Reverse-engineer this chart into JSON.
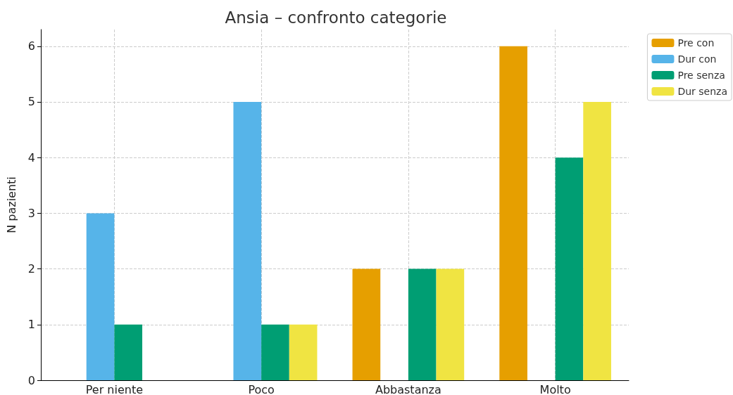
{
  "chart_data": {
    "type": "bar",
    "title": "Ansia – confronto categorie",
    "ylabel": "N pazienti",
    "categories": [
      "Per niente",
      "Poco",
      "Abbastanza",
      "Molto"
    ],
    "series": [
      {
        "name": "Pre con",
        "color": "#e69f00",
        "values": [
          0,
          0,
          2,
          6
        ]
      },
      {
        "name": "Dur con",
        "color": "#56b4e9",
        "values": [
          3,
          5,
          0,
          0
        ]
      },
      {
        "name": "Pre senza",
        "color": "#009e73",
        "values": [
          1,
          1,
          2,
          4
        ]
      },
      {
        "name": "Dur senza",
        "color": "#f0e442",
        "values": [
          0,
          1,
          2,
          5
        ]
      }
    ],
    "ylim": [
      0,
      6.3
    ],
    "yticks": [
      0,
      1,
      2,
      3,
      4,
      5,
      6
    ],
    "grid": true,
    "legend": "top right"
  }
}
